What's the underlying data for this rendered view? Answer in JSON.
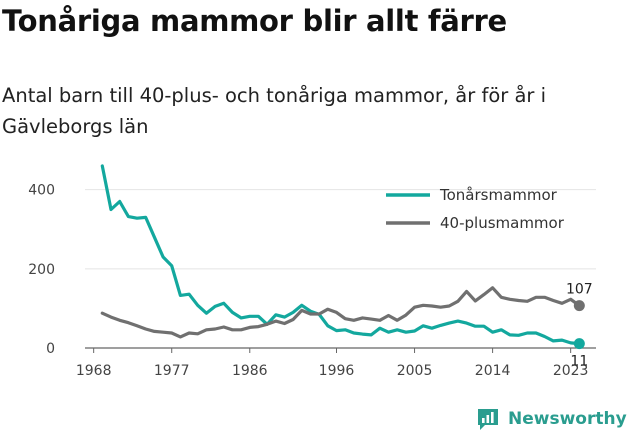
{
  "chart_data": {
    "type": "line",
    "title": "Tonåriga mammor blir allt färre",
    "subtitle": "Antal barn till 40-plus- och tonåriga mammor, år för år i Gävleborgs län",
    "x_ticks": [
      "1968",
      "1977",
      "1986",
      "1996",
      "2005",
      "2014",
      "2023"
    ],
    "y_ticks": [
      "0",
      "200",
      "400"
    ],
    "xlim": [
      1967,
      2025
    ],
    "ylim": [
      0,
      480
    ],
    "grid": true,
    "legend_position": "top-right",
    "series": [
      {
        "name": "Tonårsmammor",
        "color": "#13a89e",
        "end_label": "11",
        "x": [
          1969,
          1970,
          1971,
          1972,
          1973,
          1974,
          1975,
          1976,
          1977,
          1978,
          1979,
          1980,
          1981,
          1982,
          1983,
          1984,
          1985,
          1986,
          1987,
          1988,
          1989,
          1990,
          1991,
          1992,
          1993,
          1994,
          1995,
          1996,
          1997,
          1998,
          1999,
          2000,
          2001,
          2002,
          2003,
          2004,
          2005,
          2006,
          2007,
          2008,
          2009,
          2010,
          2011,
          2012,
          2013,
          2014,
          2015,
          2016,
          2017,
          2018,
          2019,
          2020,
          2021,
          2022,
          2023,
          2024
        ],
        "values": [
          460,
          350,
          370,
          332,
          328,
          330,
          280,
          230,
          208,
          133,
          136,
          108,
          88,
          105,
          113,
          90,
          76,
          80,
          80,
          60,
          84,
          78,
          90,
          108,
          93,
          85,
          56,
          44,
          46,
          38,
          35,
          33,
          50,
          40,
          46,
          40,
          43,
          56,
          50,
          57,
          63,
          68,
          63,
          55,
          55,
          40,
          46,
          33,
          32,
          38,
          38,
          29,
          18,
          20,
          13,
          11
        ]
      },
      {
        "name": "40-plusmammor",
        "color": "#707070",
        "end_label": "107",
        "x": [
          1969,
          1970,
          1971,
          1972,
          1973,
          1974,
          1975,
          1976,
          1977,
          1978,
          1979,
          1980,
          1981,
          1982,
          1983,
          1984,
          1985,
          1986,
          1987,
          1988,
          1989,
          1990,
          1991,
          1992,
          1993,
          1994,
          1995,
          1996,
          1997,
          1998,
          1999,
          2000,
          2001,
          2002,
          2003,
          2004,
          2005,
          2006,
          2007,
          2008,
          2009,
          2010,
          2011,
          2012,
          2013,
          2014,
          2015,
          2016,
          2017,
          2018,
          2019,
          2020,
          2021,
          2022,
          2023,
          2024
        ],
        "values": [
          88,
          78,
          70,
          64,
          56,
          48,
          42,
          40,
          38,
          28,
          38,
          36,
          46,
          48,
          53,
          46,
          46,
          52,
          54,
          60,
          68,
          62,
          72,
          95,
          86,
          86,
          98,
          90,
          74,
          70,
          76,
          73,
          70,
          82,
          70,
          83,
          103,
          108,
          106,
          103,
          106,
          118,
          143,
          119,
          135,
          152,
          128,
          123,
          120,
          118,
          128,
          128,
          120,
          113,
          123,
          107
        ]
      }
    ]
  },
  "brand": {
    "name": "Newsworthy",
    "icon": "newsworthy-logo-icon"
  }
}
